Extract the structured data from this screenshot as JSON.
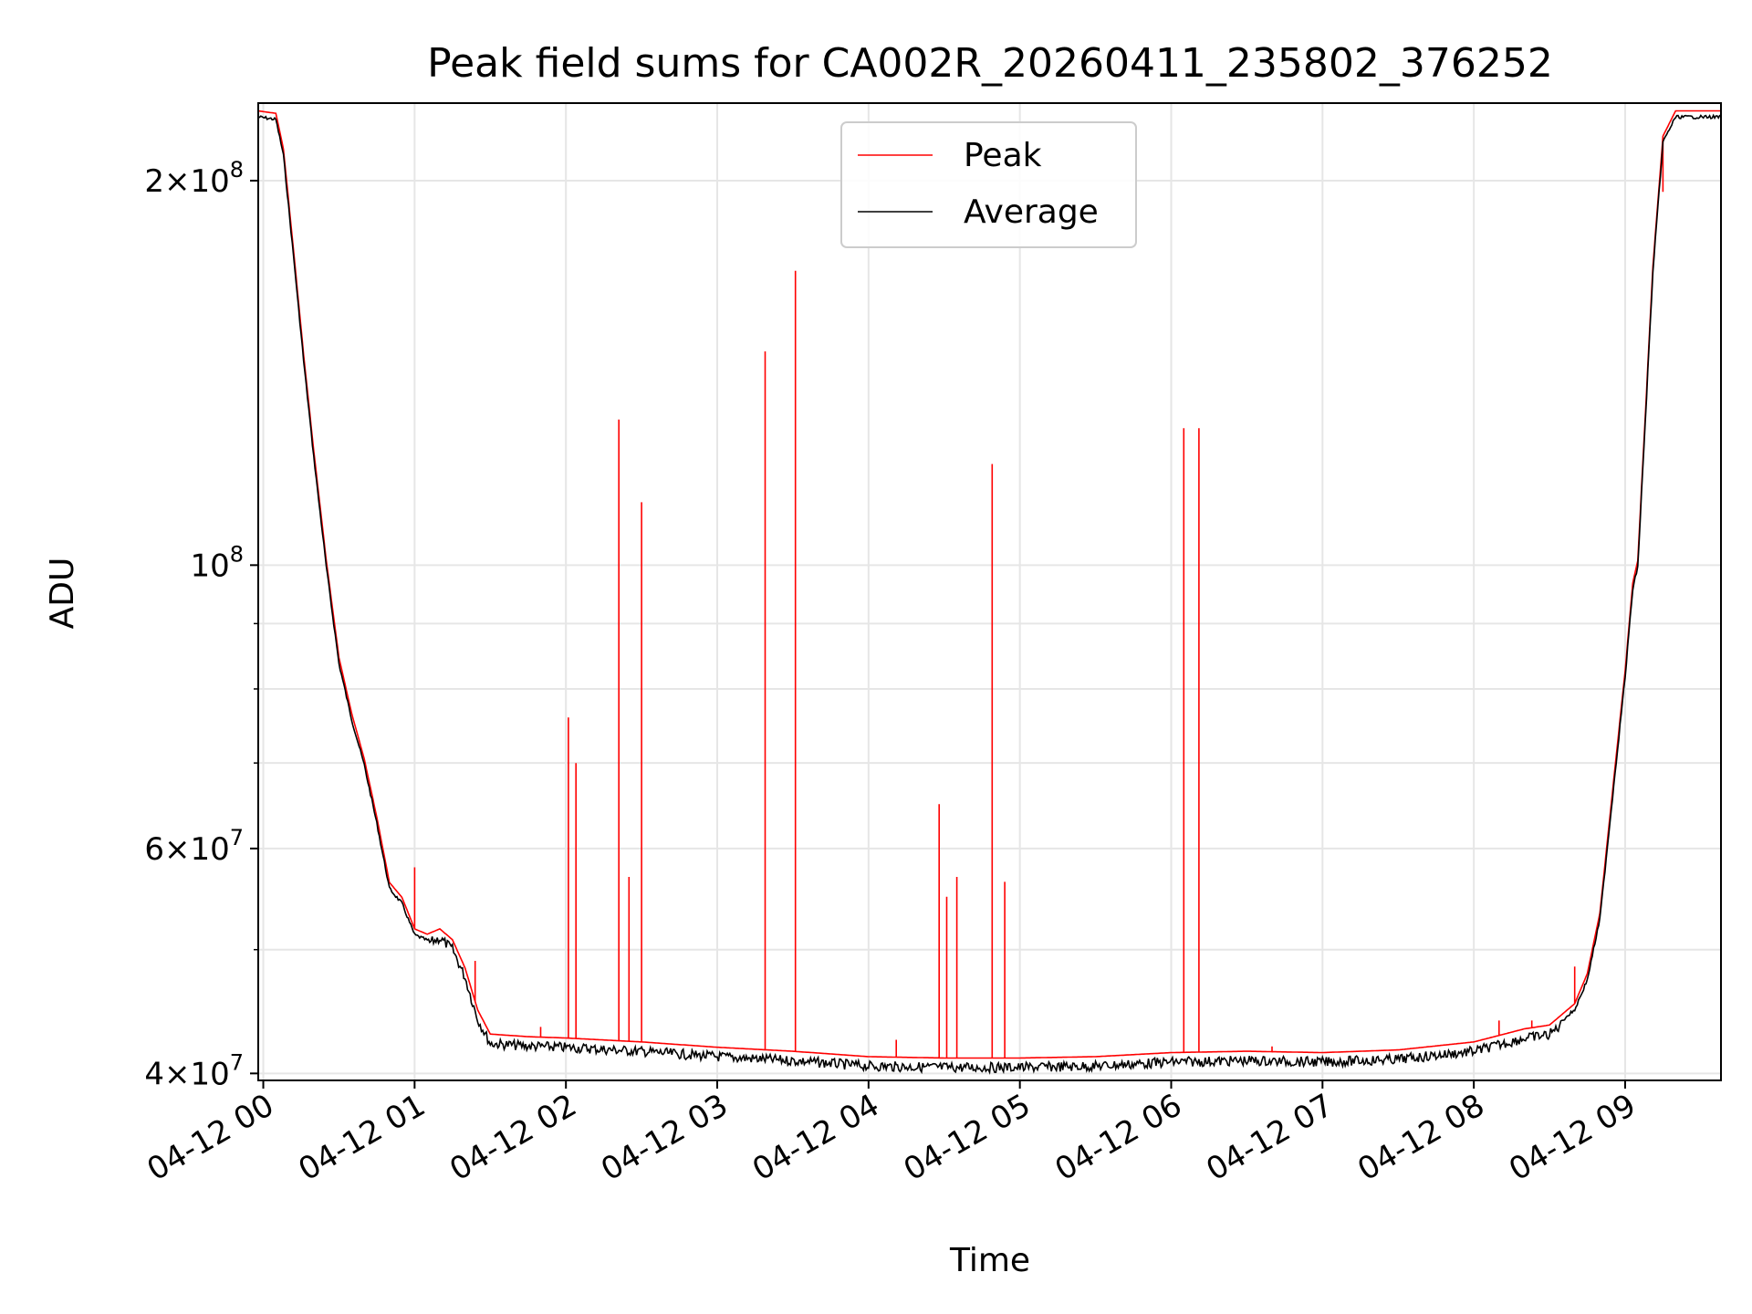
{
  "chart_data": {
    "type": "line",
    "title": "Peak field sums for CA002R_20260411_235802_376252",
    "xlabel": "Time",
    "ylabel": "ADU",
    "yscale": "log",
    "xlim": [
      "2026-04-11 23:58",
      "2026-04-12 09:38"
    ],
    "ylim": [
      39500000,
      230000000
    ],
    "x_ticks": [
      "04-12 00",
      "04-12 01",
      "04-12 02",
      "04-12 03",
      "04-12 04",
      "04-12 05",
      "04-12 06",
      "04-12 07",
      "04-12 08",
      "04-12 09"
    ],
    "y_ticks_major": [
      {
        "value": 40000000,
        "base": "4",
        "exp": "7"
      },
      {
        "value": 60000000,
        "base": "6",
        "exp": "7"
      },
      {
        "value": 100000000,
        "base": "",
        "exp": "8"
      },
      {
        "value": 200000000,
        "base": "2",
        "exp": "8"
      }
    ],
    "y_ticks_minor": [
      50000000,
      70000000,
      80000000,
      90000000
    ],
    "grid": true,
    "legend": {
      "placement": "upper center",
      "entries": [
        "Peak",
        "Average"
      ]
    },
    "series": [
      {
        "name": "Average",
        "color": "#000000",
        "points": [
          [
            "2026-04-11 23:58",
            225000000
          ],
          [
            "2026-04-12 00:05",
            224000000
          ],
          [
            "2026-04-12 00:08",
            210000000
          ],
          [
            "2026-04-12 00:12",
            175000000
          ],
          [
            "2026-04-12 00:16",
            145000000
          ],
          [
            "2026-04-12 00:20",
            122000000
          ],
          [
            "2026-04-12 00:25",
            100000000
          ],
          [
            "2026-04-12 00:30",
            84000000
          ],
          [
            "2026-04-12 00:35",
            76000000
          ],
          [
            "2026-04-12 00:40",
            70000000
          ],
          [
            "2026-04-12 00:45",
            63000000
          ],
          [
            "2026-04-12 00:50",
            56000000
          ],
          [
            "2026-04-12 00:55",
            54500000
          ],
          [
            "2026-04-12 01:00",
            51500000
          ],
          [
            "2026-04-12 01:05",
            51000000
          ],
          [
            "2026-04-12 01:10",
            51500000
          ],
          [
            "2026-04-12 01:15",
            50500000
          ],
          [
            "2026-04-12 01:20",
            48000000
          ],
          [
            "2026-04-12 01:25",
            44500000
          ],
          [
            "2026-04-12 01:30",
            42600000
          ],
          [
            "2026-04-12 01:45",
            42400000
          ],
          [
            "2026-04-12 02:00",
            42300000
          ],
          [
            "2026-04-12 02:30",
            42000000
          ],
          [
            "2026-04-12 03:00",
            41600000
          ],
          [
            "2026-04-12 03:30",
            41300000
          ],
          [
            "2026-04-12 04:00",
            40900000
          ],
          [
            "2026-04-12 04:30",
            40800000
          ],
          [
            "2026-04-12 05:00",
            40800000
          ],
          [
            "2026-04-12 05:30",
            40900000
          ],
          [
            "2026-04-12 06:00",
            41200000
          ],
          [
            "2026-04-12 06:30",
            41300000
          ],
          [
            "2026-04-12 07:00",
            41200000
          ],
          [
            "2026-04-12 07:30",
            41400000
          ],
          [
            "2026-04-12 08:00",
            42000000
          ],
          [
            "2026-04-12 08:20",
            43000000
          ],
          [
            "2026-04-12 08:30",
            43300000
          ],
          [
            "2026-04-12 08:40",
            45000000
          ],
          [
            "2026-04-12 08:45",
            47500000
          ],
          [
            "2026-04-12 08:50",
            53000000
          ],
          [
            "2026-04-12 08:55",
            66000000
          ],
          [
            "2026-04-12 09:00",
            82000000
          ],
          [
            "2026-04-12 09:03",
            96000000
          ],
          [
            "2026-04-12 09:05",
            100000000
          ],
          [
            "2026-04-12 09:08",
            130000000
          ],
          [
            "2026-04-12 09:11",
            170000000
          ],
          [
            "2026-04-12 09:15",
            215000000
          ],
          [
            "2026-04-12 09:20",
            225000000
          ],
          [
            "2026-04-12 09:38",
            225000000
          ]
        ]
      },
      {
        "name": "Peak",
        "color": "#ff0000",
        "spikes": [
          [
            "2026-04-12 01:00",
            58000000
          ],
          [
            "2026-04-12 01:24",
            49000000
          ],
          [
            "2026-04-12 01:50",
            43500000
          ],
          [
            "2026-04-12 02:01",
            76000000
          ],
          [
            "2026-04-12 02:04",
            70000000
          ],
          [
            "2026-04-12 02:21",
            43000000
          ],
          [
            "2026-04-12 02:21",
            130000000
          ],
          [
            "2026-04-12 02:25",
            57000000
          ],
          [
            "2026-04-12 02:30",
            112000000
          ],
          [
            "2026-04-12 03:19",
            147000000
          ],
          [
            "2026-04-12 03:31",
            170000000
          ],
          [
            "2026-04-12 04:11",
            42500000
          ],
          [
            "2026-04-12 04:28",
            65000000
          ],
          [
            "2026-04-12 04:31",
            55000000
          ],
          [
            "2026-04-12 04:35",
            57000000
          ],
          [
            "2026-04-12 04:49",
            120000000
          ],
          [
            "2026-04-12 04:54",
            56500000
          ],
          [
            "2026-04-12 06:05",
            128000000
          ],
          [
            "2026-04-12 06:11",
            128000000
          ],
          [
            "2026-04-12 06:40",
            42000000
          ],
          [
            "2026-04-12 08:10",
            44000000
          ],
          [
            "2026-04-12 08:23",
            44000000
          ],
          [
            "2026-04-12 08:40",
            48500000
          ],
          [
            "2026-04-12 09:15",
            196000000
          ]
        ]
      }
    ]
  }
}
